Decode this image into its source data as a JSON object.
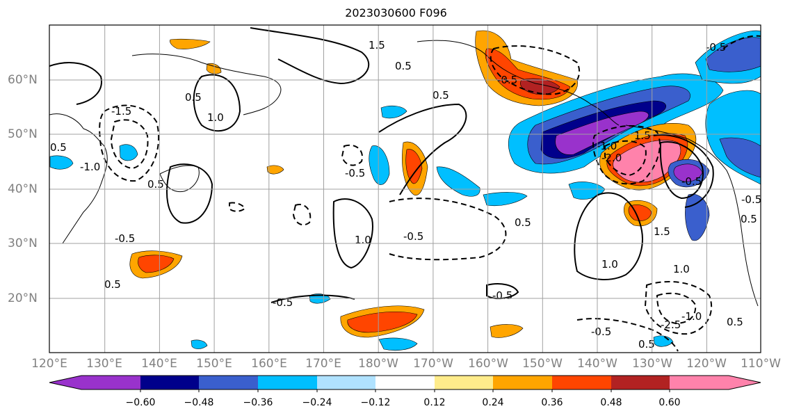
{
  "title": "2023030600 F096",
  "lon_labels": [
    "120°E",
    "130°E",
    "140°E",
    "150°E",
    "160°E",
    "170°E",
    "180°W",
    "170°W",
    "160°W",
    "150°W",
    "140°W",
    "130°W",
    "120°W",
    "110°W"
  ],
  "lat_labels": [
    "60°N",
    "50°N",
    "40°N",
    "30°N",
    "20°N"
  ],
  "colorbar": {
    "ticks": [
      "−0.60",
      "−0.48",
      "−0.36",
      "−0.24",
      "−0.12",
      "0.12",
      "0.24",
      "0.36",
      "0.48",
      "0.60"
    ],
    "colors": [
      "#9932cc",
      "#00008b",
      "#3a5fcd",
      "#00bfff",
      "#b0e2ff",
      "#ffffff",
      "#ffec8b",
      "#ffa500",
      "#ff4500",
      "#b22222",
      "#ff82ab"
    ]
  },
  "contour_labels": [
    "0.5",
    "0.5",
    "1.0",
    "1.5",
    "-1.5",
    "-1.0",
    "1.0",
    "-0.5",
    "0.5",
    "0.5",
    "-0.5",
    "-0.5",
    "1.0",
    "1.5",
    "-0.5",
    "0.5",
    "-0.5",
    "-0.5",
    "0.5",
    "0.5",
    "1.0",
    "1.5",
    "0.5",
    "-1.0",
    "-2.0",
    "-0.5",
    "0.5",
    "-0.5",
    "-1.0",
    "-2.5",
    "0.5",
    "-0.5",
    "-0.5"
  ]
}
